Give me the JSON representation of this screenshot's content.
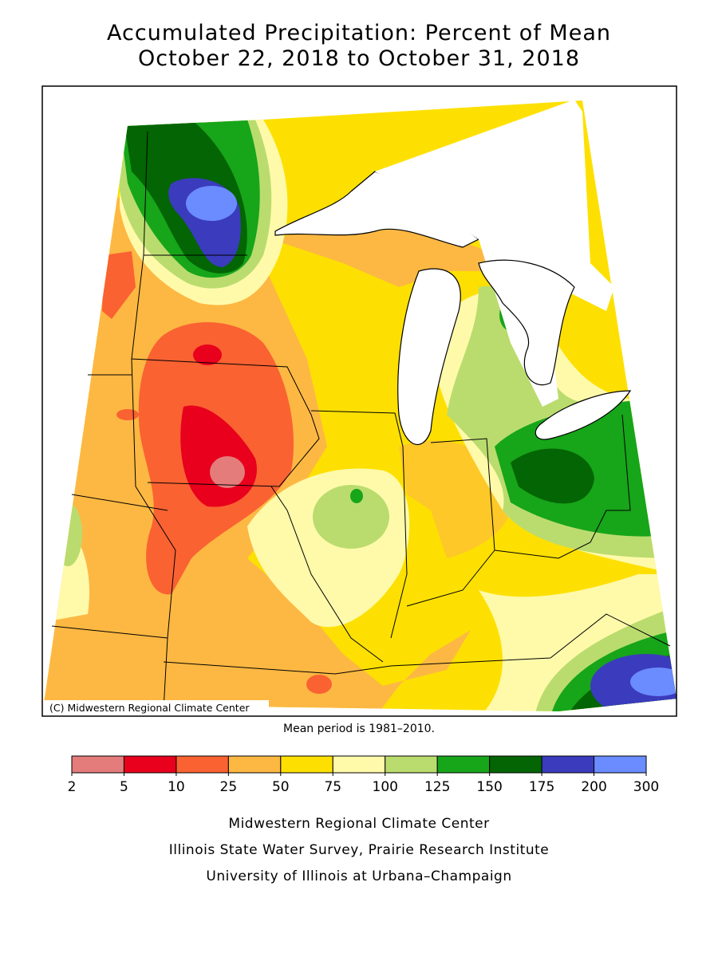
{
  "title": [
    "Accumulated Precipitation: Percent of Mean",
    "October 22, 2018 to October 31, 2018"
  ],
  "map": {
    "copyright": "(C) Midwestern Regional Climate Center",
    "note": "Mean period is 1981–2010."
  },
  "legend": {
    "ticks": [
      2,
      5,
      10,
      25,
      50,
      75,
      100,
      125,
      150,
      175,
      200,
      300
    ],
    "colors": [
      "#e47c7c",
      "#e8001c",
      "#fa6232",
      "#fdb843",
      "#fde002",
      "#fffaaa",
      "#badc6e",
      "#17a51a",
      "#036503",
      "#3b3bbd",
      "#6a8cff"
    ]
  },
  "footer": [
    "Midwestern Regional Climate Center",
    "Illinois State Water Survey, Prairie Research Institute",
    "University of Illinois at Urbana–Champaign"
  ]
}
